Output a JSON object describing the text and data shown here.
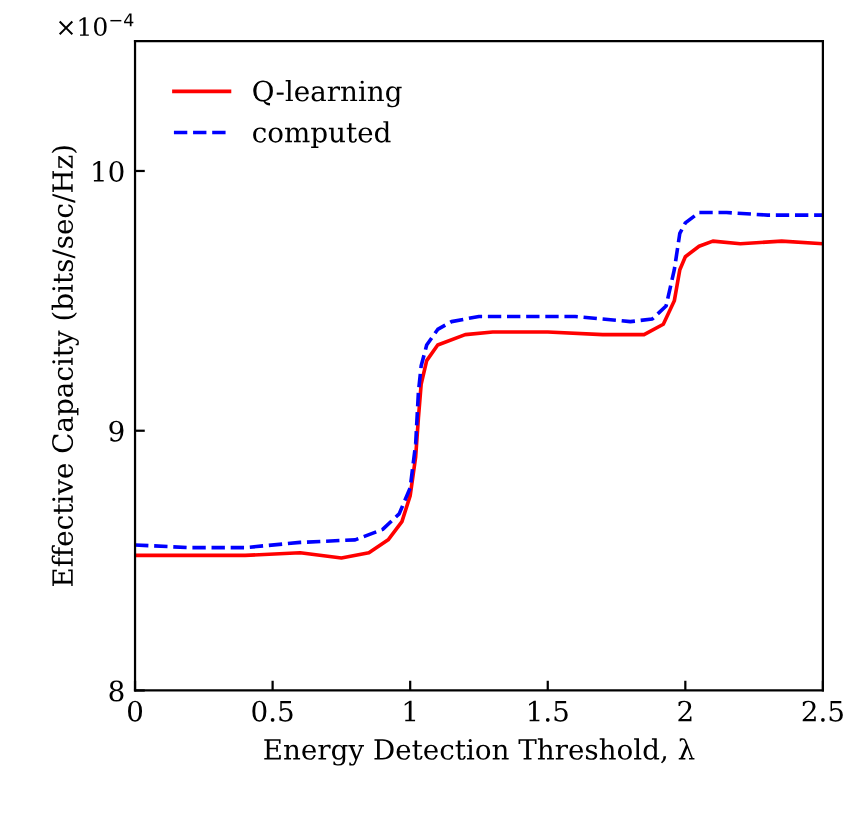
{
  "chart_data": {
    "type": "line",
    "xlabel": "Energy Detection Threshold, λ",
    "ylabel": "Effective Capacity (bits/sec/Hz)",
    "annotations": [
      "×10$^{−4}$"
    ],
    "xlim": [
      0,
      2.5
    ],
    "xticks": [
      0,
      0.5,
      1,
      1.5,
      2,
      2.5
    ],
    "ylim": [
      8,
      10.5
    ],
    "yticks": [
      8,
      9,
      10
    ],
    "grid": false,
    "legend": "top left",
    "series": [
      {
        "name": "Q-learning",
        "color": "#ff0000",
        "line_style": "solid",
        "x": [
          0,
          0.2,
          0.4,
          0.6,
          0.75,
          0.85,
          0.92,
          0.97,
          1.0,
          1.02,
          1.03,
          1.04,
          1.06,
          1.1,
          1.2,
          1.3,
          1.5,
          1.7,
          1.85,
          1.92,
          1.96,
          1.98,
          2.0,
          2.05,
          2.1,
          2.2,
          2.35,
          2.5
        ],
        "values": [
          8.52,
          8.52,
          8.52,
          8.53,
          8.51,
          8.53,
          8.58,
          8.65,
          8.75,
          8.9,
          9.05,
          9.18,
          9.27,
          9.33,
          9.37,
          9.38,
          9.38,
          9.37,
          9.37,
          9.41,
          9.5,
          9.62,
          9.67,
          9.71,
          9.73,
          9.72,
          9.73,
          9.72
        ]
      },
      {
        "name": "computed",
        "color": "#0000ff",
        "line_style": "dashed",
        "x": [
          0,
          0.2,
          0.4,
          0.6,
          0.8,
          0.9,
          0.96,
          1.0,
          1.02,
          1.03,
          1.04,
          1.06,
          1.1,
          1.15,
          1.25,
          1.4,
          1.6,
          1.8,
          1.88,
          1.93,
          1.96,
          1.98,
          2.0,
          2.05,
          2.15,
          2.3,
          2.5
        ],
        "values": [
          8.56,
          8.55,
          8.55,
          8.57,
          8.58,
          8.62,
          8.68,
          8.78,
          8.95,
          9.15,
          9.25,
          9.33,
          9.39,
          9.42,
          9.44,
          9.44,
          9.44,
          9.42,
          9.43,
          9.48,
          9.62,
          9.76,
          9.8,
          9.84,
          9.84,
          9.83,
          9.83
        ]
      }
    ]
  }
}
